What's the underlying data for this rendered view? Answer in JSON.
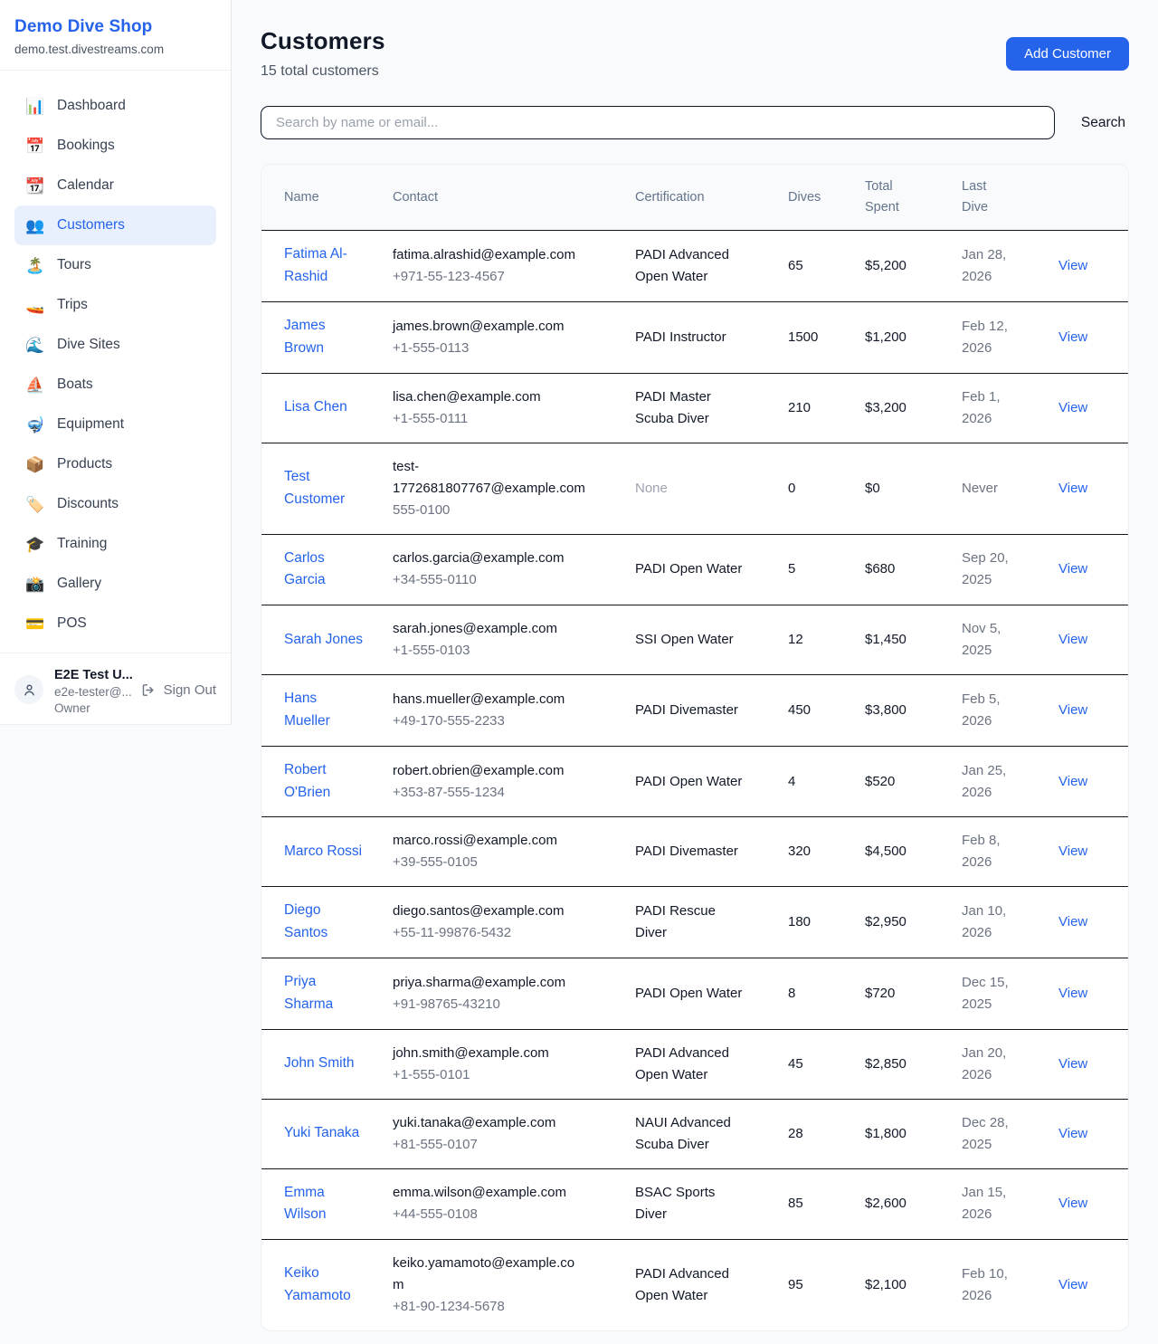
{
  "sidebar": {
    "shop_name": "Demo Dive Shop",
    "shop_domain": "demo.test.divestreams.com",
    "items": [
      {
        "icon": "📊",
        "icon_name": "bar-chart-icon",
        "label": "Dashboard",
        "active": false
      },
      {
        "icon": "📅",
        "icon_name": "calendar-icon",
        "label": "Bookings",
        "active": false
      },
      {
        "icon": "📆",
        "icon_name": "tear-off-calendar-icon",
        "label": "Calendar",
        "active": false
      },
      {
        "icon": "👥",
        "icon_name": "busts-icon",
        "label": "Customers",
        "active": true
      },
      {
        "icon": "🏝️",
        "icon_name": "island-icon",
        "label": "Tours",
        "active": false
      },
      {
        "icon": "🚤",
        "icon_name": "speedboat-icon",
        "label": "Trips",
        "active": false
      },
      {
        "icon": "🌊",
        "icon_name": "wave-icon",
        "label": "Dive Sites",
        "active": false
      },
      {
        "icon": "⛵",
        "icon_name": "sailboat-icon",
        "label": "Boats",
        "active": false
      },
      {
        "icon": "🤿",
        "icon_name": "diving-mask-icon",
        "label": "Equipment",
        "active": false
      },
      {
        "icon": "📦",
        "icon_name": "package-icon",
        "label": "Products",
        "active": false
      },
      {
        "icon": "🏷️",
        "icon_name": "label-tag-icon",
        "label": "Discounts",
        "active": false
      },
      {
        "icon": "🎓",
        "icon_name": "graduation-cap-icon",
        "label": "Training",
        "active": false
      },
      {
        "icon": "📸",
        "icon_name": "camera-flash-icon",
        "label": "Gallery",
        "active": false
      },
      {
        "icon": "💳",
        "icon_name": "credit-card-icon",
        "label": "POS",
        "active": false
      }
    ],
    "user": {
      "name": "E2E Test U...",
      "email": "e2e-tester@...",
      "role": "Owner",
      "sign_out_label": "Sign Out"
    }
  },
  "header": {
    "title": "Customers",
    "subtitle": "15 total customers",
    "add_button": "Add Customer"
  },
  "search": {
    "placeholder": "Search by name or email...",
    "button": "Search"
  },
  "table": {
    "columns": [
      "Name",
      "Contact",
      "Certification",
      "Dives",
      "Total Spent",
      "Last Dive",
      ""
    ],
    "rows": [
      {
        "name": "Fatima Al-Rashid",
        "email": "fatima.alrashid@example.com",
        "phone": "+971-55-123-4567",
        "certification": "PADI Advanced Open Water",
        "dives": "65",
        "total_spent": "$5,200",
        "last_dive": "Jan 28, 2026",
        "action": "View"
      },
      {
        "name": "James Brown",
        "email": "james.brown@example.com",
        "phone": "+1-555-0113",
        "certification": "PADI Instructor",
        "dives": "1500",
        "total_spent": "$1,200",
        "last_dive": "Feb 12, 2026",
        "action": "View"
      },
      {
        "name": "Lisa Chen",
        "email": "lisa.chen@example.com",
        "phone": "+1-555-0111",
        "certification": "PADI Master Scuba Diver",
        "dives": "210",
        "total_spent": "$3,200",
        "last_dive": "Feb 1, 2026",
        "action": "View"
      },
      {
        "name": "Test Customer",
        "email": "test-1772681807767@example.com",
        "phone": "555-0100",
        "certification": "None",
        "dives": "0",
        "total_spent": "$0",
        "last_dive": "Never",
        "action": "View"
      },
      {
        "name": "Carlos Garcia",
        "email": "carlos.garcia@example.com",
        "phone": "+34-555-0110",
        "certification": "PADI Open Water",
        "dives": "5",
        "total_spent": "$680",
        "last_dive": "Sep 20, 2025",
        "action": "View"
      },
      {
        "name": "Sarah Jones",
        "email": "sarah.jones@example.com",
        "phone": "+1-555-0103",
        "certification": "SSI Open Water",
        "dives": "12",
        "total_spent": "$1,450",
        "last_dive": "Nov 5, 2025",
        "action": "View"
      },
      {
        "name": "Hans Mueller",
        "email": "hans.mueller@example.com",
        "phone": "+49-170-555-2233",
        "certification": "PADI Divemaster",
        "dives": "450",
        "total_spent": "$3,800",
        "last_dive": "Feb 5, 2026",
        "action": "View"
      },
      {
        "name": "Robert O'Brien",
        "email": "robert.obrien@example.com",
        "phone": "+353-87-555-1234",
        "certification": "PADI Open Water",
        "dives": "4",
        "total_spent": "$520",
        "last_dive": "Jan 25, 2026",
        "action": "View"
      },
      {
        "name": "Marco Rossi",
        "email": "marco.rossi@example.com",
        "phone": "+39-555-0105",
        "certification": "PADI Divemaster",
        "dives": "320",
        "total_spent": "$4,500",
        "last_dive": "Feb 8, 2026",
        "action": "View"
      },
      {
        "name": "Diego Santos",
        "email": "diego.santos@example.com",
        "phone": "+55-11-99876-5432",
        "certification": "PADI Rescue Diver",
        "dives": "180",
        "total_spent": "$2,950",
        "last_dive": "Jan 10, 2026",
        "action": "View"
      },
      {
        "name": "Priya Sharma",
        "email": "priya.sharma@example.com",
        "phone": "+91-98765-43210",
        "certification": "PADI Open Water",
        "dives": "8",
        "total_spent": "$720",
        "last_dive": "Dec 15, 2025",
        "action": "View"
      },
      {
        "name": "John Smith",
        "email": "john.smith@example.com",
        "phone": "+1-555-0101",
        "certification": "PADI Advanced Open Water",
        "dives": "45",
        "total_spent": "$2,850",
        "last_dive": "Jan 20, 2026",
        "action": "View"
      },
      {
        "name": "Yuki Tanaka",
        "email": "yuki.tanaka@example.com",
        "phone": "+81-555-0107",
        "certification": "NAUI Advanced Scuba Diver",
        "dives": "28",
        "total_spent": "$1,800",
        "last_dive": "Dec 28, 2025",
        "action": "View"
      },
      {
        "name": "Emma Wilson",
        "email": "emma.wilson@example.com",
        "phone": "+44-555-0108",
        "certification": "BSAC Sports Diver",
        "dives": "85",
        "total_spent": "$2,600",
        "last_dive": "Jan 15, 2026",
        "action": "View"
      },
      {
        "name": "Keiko Yamamoto",
        "email": "keiko.yamamoto@example.com",
        "phone": "+81-90-1234-5678",
        "certification": "PADI Advanced Open Water",
        "dives": "95",
        "total_spent": "$2,100",
        "last_dive": "Feb 10, 2026",
        "action": "View"
      }
    ]
  },
  "colors": {
    "accent_blue": "#2563eb",
    "active_item_bg": "#e8f0fe",
    "page_bg": "#f8fafc",
    "muted_text": "#6b7280",
    "row_border": "#14171e"
  }
}
